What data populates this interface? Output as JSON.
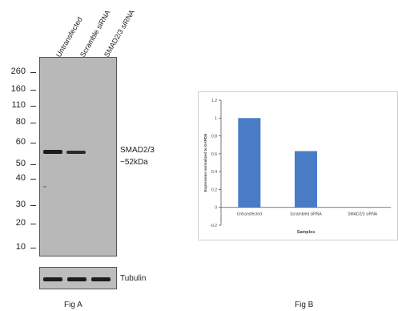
{
  "figA": {
    "label": "Fig A",
    "lanes": [
      "Untransfected",
      "Scramble siRNA",
      "SMAD2/3 siRNA"
    ],
    "markers": [
      "260",
      "160",
      "110",
      "80",
      "60",
      "50",
      "40",
      "30",
      "20",
      "10"
    ],
    "band_label_1": "SMAD2/3",
    "band_label_2": "~52kDa",
    "loading_label": "Tubulin"
  },
  "figB": {
    "label": "Fig B"
  },
  "chart_data": {
    "type": "bar",
    "categories": [
      "Untransfected",
      "Scrambled siRNA",
      "SMAD2/3 siRNA"
    ],
    "values": [
      1.0,
      0.63,
      0.0
    ],
    "title": "",
    "xlabel": "Samples",
    "ylabel": "Expression normalized to GAPDH",
    "ylim": [
      -0.2,
      1.2
    ],
    "yticks": [
      "1.2",
      "1",
      "0.8",
      "0.6",
      "0.4",
      "0.2",
      "0",
      "-0.2"
    ],
    "bar_color": "#4a7cc6",
    "grid": false,
    "legend": "none"
  }
}
